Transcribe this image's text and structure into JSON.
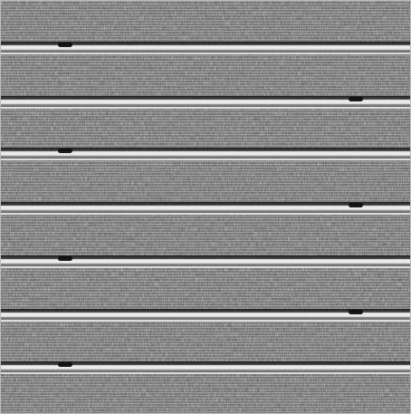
{
  "image": {
    "kind": "grayscale striated texture",
    "description_tag": "horizontal-band-texture",
    "dominant_colors": {
      "background": "#6b6b6b",
      "band_light": "#efefef",
      "band_dark": "#111111",
      "noise_dark": "#2f2f2f",
      "noise_light": "#cfcfcf"
    },
    "visible_band_count": 7
  }
}
